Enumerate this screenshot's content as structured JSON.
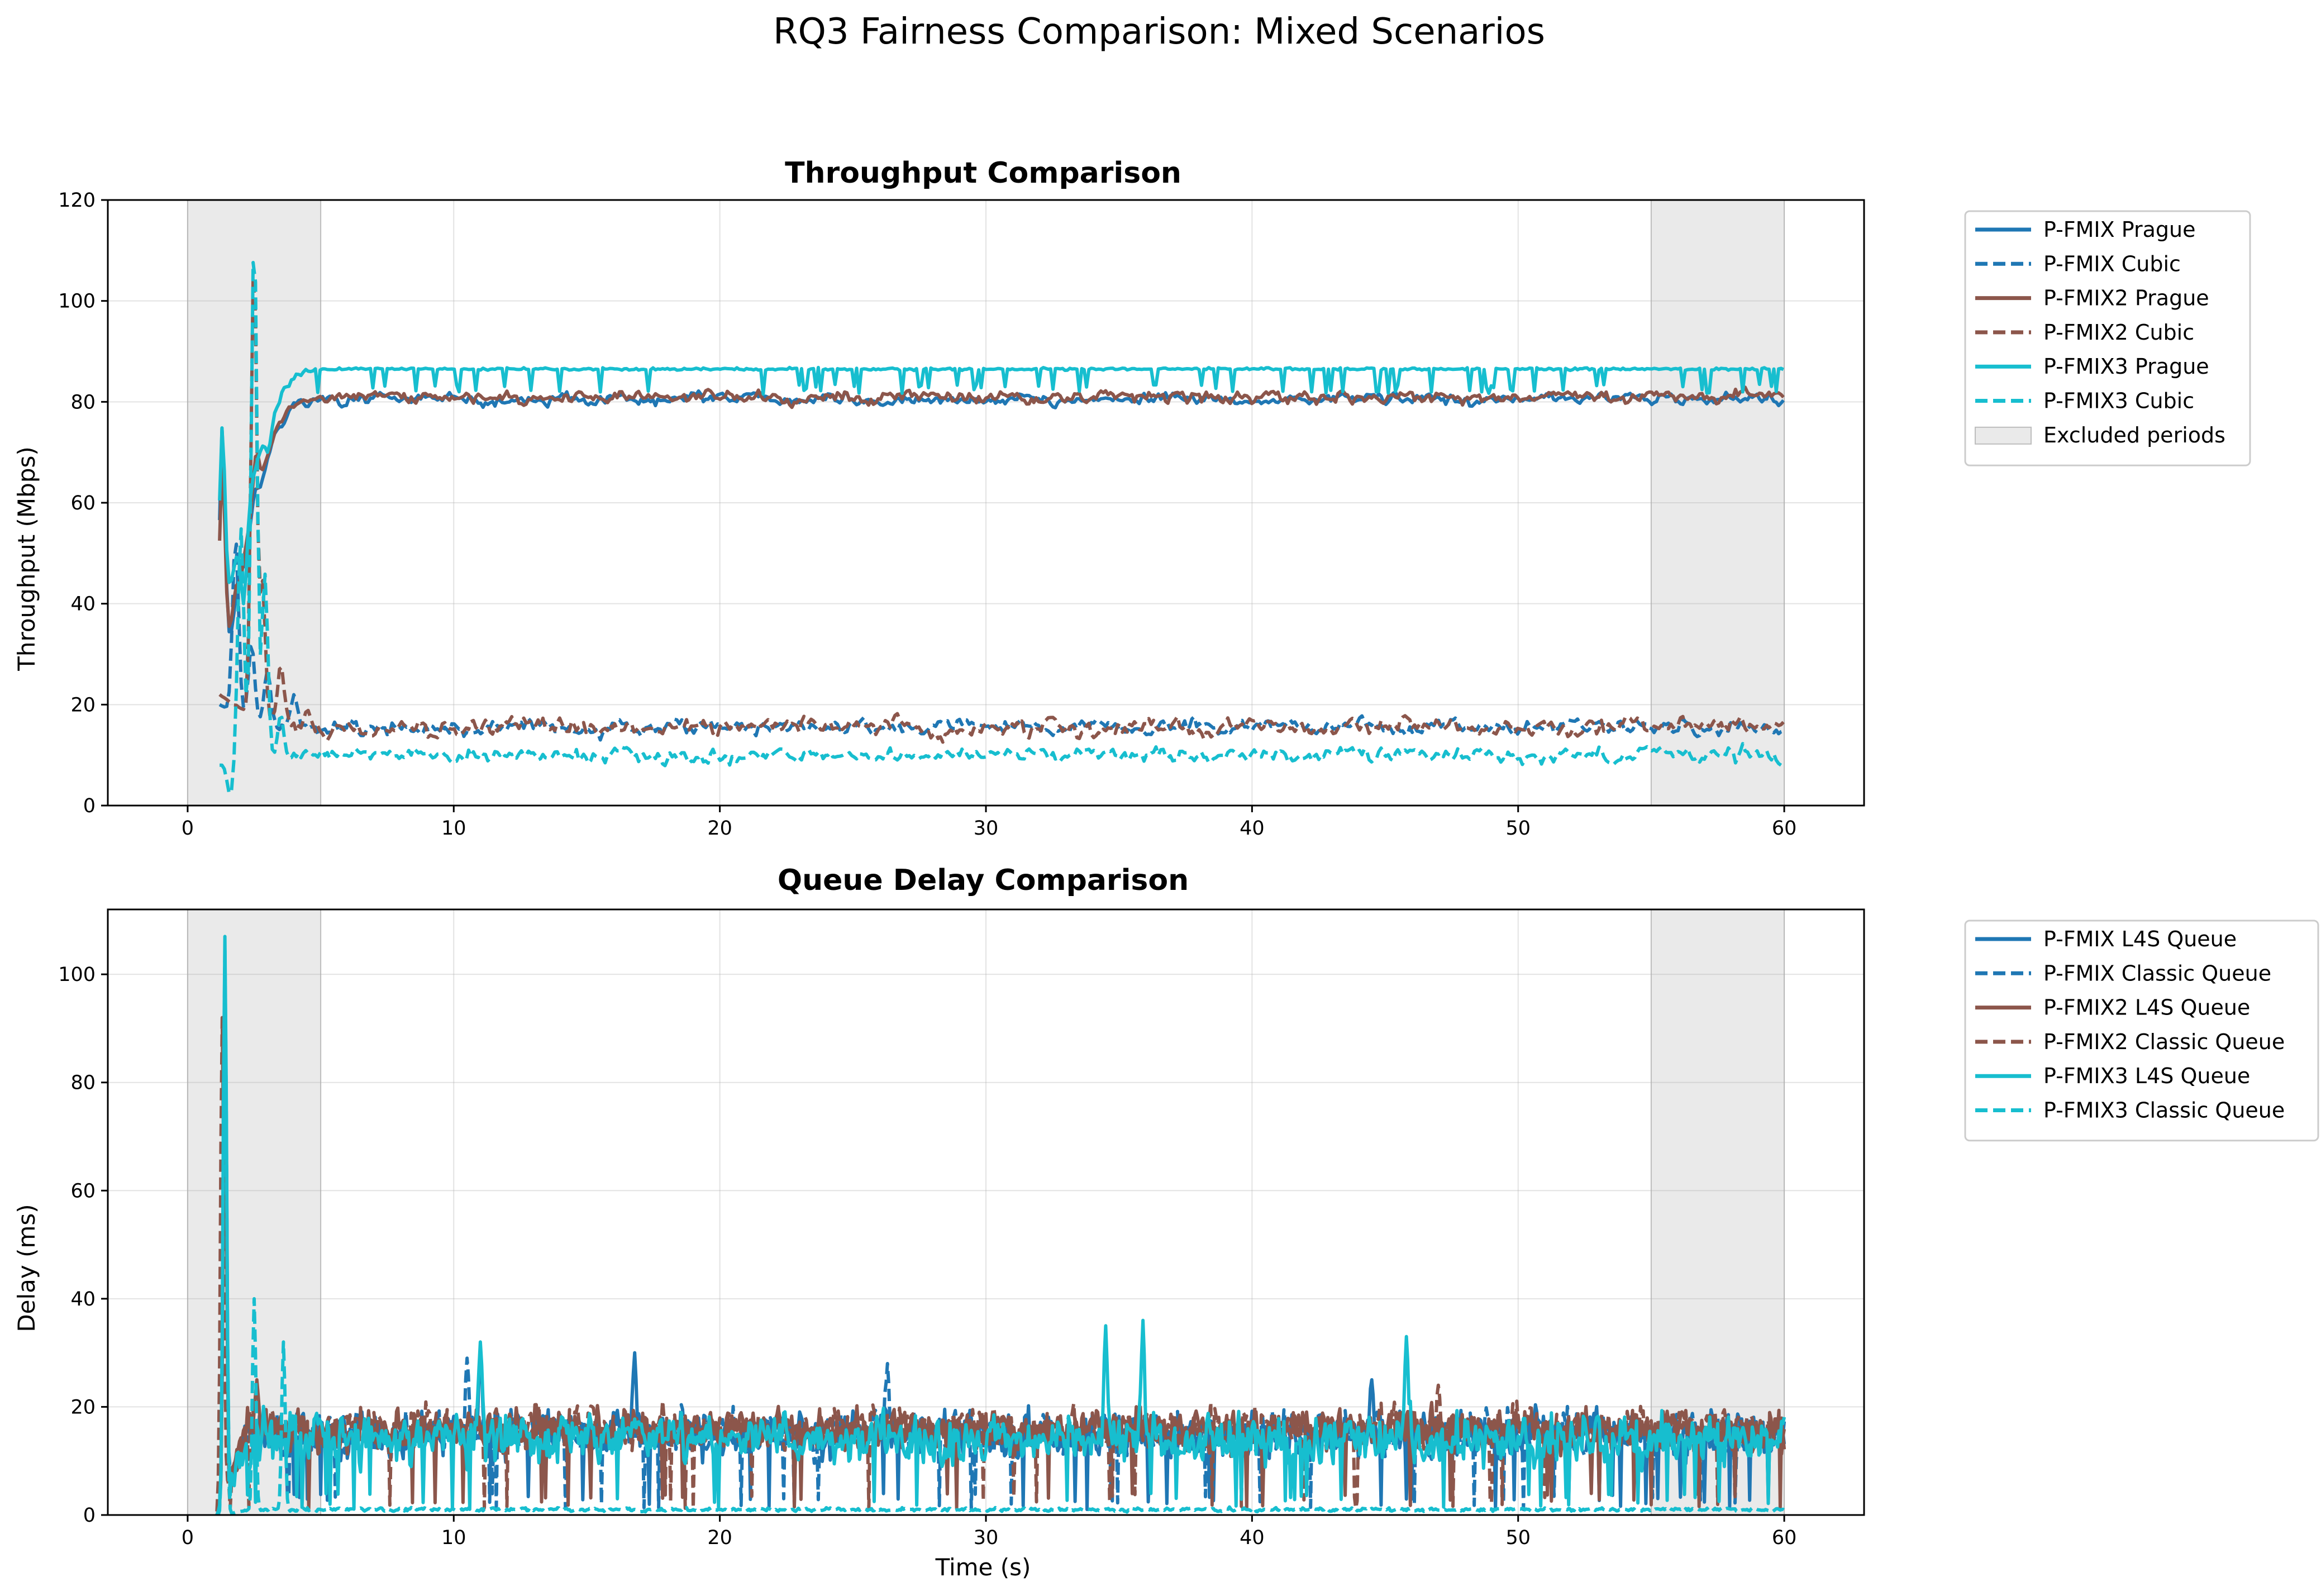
{
  "suptitle": "RQ3 Fairness Comparison: Mixed Scenarios",
  "colors": {
    "P-FMIX": "#1f77b4",
    "P-FMIX2": "#8c564b",
    "P-FMIX3": "#17becf",
    "excluded": "#d9d9d9"
  },
  "chart_data": [
    {
      "type": "line",
      "title": "Throughput Comparison",
      "xlabel": "",
      "ylabel": "Throughput (Mbps)",
      "xlim": [
        -3,
        63
      ],
      "ylim": [
        0,
        120
      ],
      "xticks": [
        0,
        10,
        20,
        30,
        40,
        50,
        60
      ],
      "yticks": [
        0,
        20,
        40,
        60,
        80,
        100,
        120
      ],
      "grid": true,
      "legend_position": "outside-right",
      "excluded_periods": [
        [
          0,
          5
        ],
        [
          55,
          60
        ]
      ],
      "excluded_label": "Excluded periods",
      "series": [
        {
          "name": "P-FMIX Prague",
          "scenario": "P-FMIX",
          "style": "solid",
          "start": 1.2,
          "initial": 18,
          "steady": 80.5,
          "noise": 1.6,
          "spikes": [
            [
              1.3,
              75
            ],
            [
              2.0,
              47
            ],
            [
              2.6,
              63
            ],
            [
              3.5,
              75
            ],
            [
              4.5,
              79
            ]
          ]
        },
        {
          "name": "P-FMIX Cubic",
          "scenario": "P-FMIX",
          "style": "dashed",
          "start": 1.2,
          "initial": 20,
          "steady": 15.5,
          "noise": 2.2,
          "spikes": [
            [
              1.8,
              53
            ],
            [
              2.4,
              32
            ],
            [
              3.0,
              27
            ],
            [
              4.0,
              22
            ]
          ]
        },
        {
          "name": "P-FMIX2 Prague",
          "scenario": "P-FMIX2",
          "style": "solid",
          "start": 1.2,
          "initial": 20,
          "steady": 81,
          "noise": 1.8,
          "spikes": [
            [
              1.3,
              68
            ],
            [
              1.9,
              44
            ],
            [
              2.6,
              70
            ],
            [
              3.5,
              76
            ],
            [
              4.5,
              80
            ]
          ]
        },
        {
          "name": "P-FMIX2 Cubic",
          "scenario": "P-FMIX2",
          "style": "dashed",
          "start": 1.2,
          "initial": 22,
          "steady": 15.5,
          "noise": 2.5,
          "spikes": [
            [
              2.5,
              111
            ],
            [
              2.8,
              45
            ],
            [
              3.5,
              28
            ],
            [
              4.5,
              19
            ]
          ]
        },
        {
          "name": "P-FMIX3 Prague",
          "scenario": "P-FMIX3",
          "style": "solid",
          "start": 1.2,
          "initial": 30,
          "steady": 85.5,
          "noise": 1.8,
          "spikes": [
            [
              1.3,
              75
            ],
            [
              2.1,
              40
            ],
            [
              3.0,
              70
            ],
            [
              3.7,
              83
            ],
            [
              4.6,
              86
            ]
          ]
        },
        {
          "name": "P-FMIX3 Cubic",
          "scenario": "P-FMIX3",
          "style": "dashed",
          "start": 1.2,
          "initial": 8,
          "steady": 10,
          "noise": 2.0,
          "spikes": [
            [
              1.6,
              2
            ],
            [
              2.0,
              55
            ],
            [
              2.5,
              114
            ],
            [
              2.9,
              46
            ],
            [
              3.5,
              18
            ]
          ]
        }
      ]
    },
    {
      "type": "line",
      "title": "Queue Delay Comparison",
      "xlabel": "Time (s)",
      "ylabel": "Delay (ms)",
      "xlim": [
        -3,
        63
      ],
      "ylim": [
        0,
        112
      ],
      "xticks": [
        0,
        10,
        20,
        30,
        40,
        50,
        60
      ],
      "yticks": [
        0,
        20,
        40,
        60,
        80,
        100
      ],
      "grid": true,
      "legend_position": "outside-right",
      "excluded_periods": [
        [
          0,
          5
        ],
        [
          55,
          60
        ]
      ],
      "series": [
        {
          "name": "P-FMIX L4S Queue",
          "scenario": "P-FMIX",
          "style": "solid",
          "start": 1.1,
          "base": 15,
          "noise": 6,
          "spikes": [
            [
              1.4,
              100
            ],
            [
              11.0,
              31
            ],
            [
              16.8,
              30
            ],
            [
              44.5,
              25
            ]
          ]
        },
        {
          "name": "P-FMIX Classic Queue",
          "scenario": "P-FMIX",
          "style": "dashed",
          "start": 1.1,
          "base": 15,
          "noise": 6,
          "spikes": [
            [
              1.4,
              95
            ],
            [
              10.5,
              29
            ],
            [
              26.3,
              28
            ]
          ]
        },
        {
          "name": "P-FMIX2 L4S Queue",
          "scenario": "P-FMIX2",
          "style": "solid",
          "start": 1.1,
          "base": 16,
          "noise": 6,
          "spikes": [
            [
              1.4,
              80
            ],
            [
              2.6,
              25
            ]
          ]
        },
        {
          "name": "P-FMIX2 Classic Queue",
          "scenario": "P-FMIX2",
          "style": "dashed",
          "start": 1.1,
          "base": 16,
          "noise": 6,
          "spikes": [
            [
              1.3,
              92
            ],
            [
              47.0,
              24
            ]
          ]
        },
        {
          "name": "P-FMIX3 L4S Queue",
          "scenario": "P-FMIX3",
          "style": "solid",
          "start": 1.1,
          "base": 14,
          "noise": 7,
          "spikes": [
            [
              1.4,
              107
            ],
            [
              11.0,
              32
            ],
            [
              34.5,
              35
            ],
            [
              35.9,
              36
            ],
            [
              45.8,
              33
            ]
          ]
        },
        {
          "name": "P-FMIX3 Classic Queue",
          "scenario": "P-FMIX3",
          "style": "dashed",
          "start": 1.1,
          "base": 1,
          "noise": 0.5,
          "spikes": [
            [
              1.4,
              105
            ],
            [
              2.5,
              40
            ],
            [
              3.6,
              32
            ]
          ]
        }
      ]
    }
  ]
}
